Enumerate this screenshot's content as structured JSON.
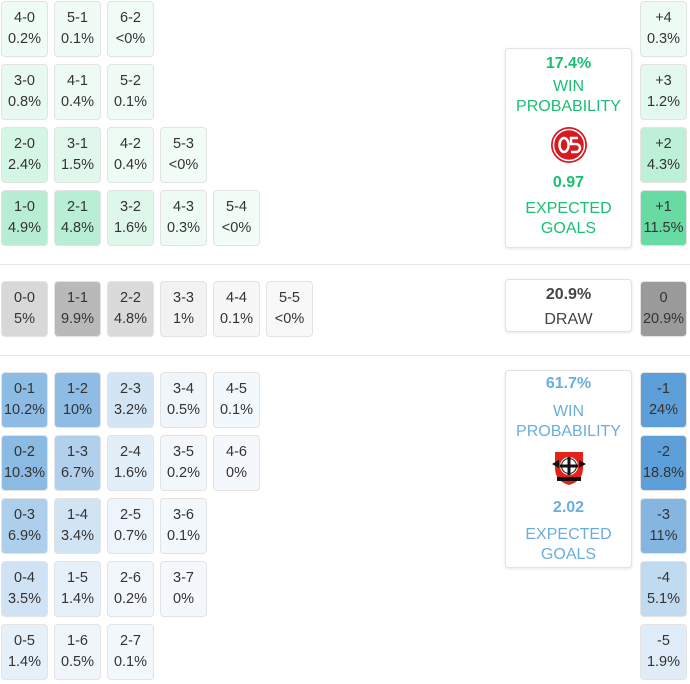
{
  "colors": {
    "home_accent": "#1bbf73",
    "away_accent": "#6aaedd",
    "draw_accent": "#444444"
  },
  "home_scores": [
    [
      {
        "score": "4-0",
        "pct": "0.2%"
      },
      {
        "score": "5-1",
        "pct": "0.1%"
      },
      {
        "score": "6-2",
        "pct": "<0%"
      }
    ],
    [
      {
        "score": "3-0",
        "pct": "0.8%"
      },
      {
        "score": "4-1",
        "pct": "0.4%"
      },
      {
        "score": "5-2",
        "pct": "0.1%"
      }
    ],
    [
      {
        "score": "2-0",
        "pct": "2.4%"
      },
      {
        "score": "3-1",
        "pct": "1.5%"
      },
      {
        "score": "4-2",
        "pct": "0.4%"
      },
      {
        "score": "5-3",
        "pct": "<0%"
      }
    ],
    [
      {
        "score": "1-0",
        "pct": "4.9%"
      },
      {
        "score": "2-1",
        "pct": "4.8%"
      },
      {
        "score": "3-2",
        "pct": "1.6%"
      },
      {
        "score": "4-3",
        "pct": "0.3%"
      },
      {
        "score": "5-4",
        "pct": "<0%"
      }
    ]
  ],
  "draw_scores": [
    {
      "score": "0-0",
      "pct": "5%"
    },
    {
      "score": "1-1",
      "pct": "9.9%"
    },
    {
      "score": "2-2",
      "pct": "4.8%"
    },
    {
      "score": "3-3",
      "pct": "1%"
    },
    {
      "score": "4-4",
      "pct": "0.1%"
    },
    {
      "score": "5-5",
      "pct": "<0%"
    }
  ],
  "away_scores": [
    [
      {
        "score": "0-1",
        "pct": "10.2%"
      },
      {
        "score": "1-2",
        "pct": "10%"
      },
      {
        "score": "2-3",
        "pct": "3.2%"
      },
      {
        "score": "3-4",
        "pct": "0.5%"
      },
      {
        "score": "4-5",
        "pct": "0.1%"
      }
    ],
    [
      {
        "score": "0-2",
        "pct": "10.3%"
      },
      {
        "score": "1-3",
        "pct": "6.7%"
      },
      {
        "score": "2-4",
        "pct": "1.6%"
      },
      {
        "score": "3-5",
        "pct": "0.2%"
      },
      {
        "score": "4-6",
        "pct": "0%"
      }
    ],
    [
      {
        "score": "0-3",
        "pct": "6.9%"
      },
      {
        "score": "1-4",
        "pct": "3.4%"
      },
      {
        "score": "2-5",
        "pct": "0.7%"
      },
      {
        "score": "3-6",
        "pct": "0.1%"
      }
    ],
    [
      {
        "score": "0-4",
        "pct": "3.5%"
      },
      {
        "score": "1-5",
        "pct": "1.4%"
      },
      {
        "score": "2-6",
        "pct": "0.2%"
      },
      {
        "score": "3-7",
        "pct": "0%"
      }
    ],
    [
      {
        "score": "0-5",
        "pct": "1.4%"
      },
      {
        "score": "1-6",
        "pct": "0.5%"
      },
      {
        "score": "2-7",
        "pct": "0.1%"
      }
    ]
  ],
  "margins": [
    {
      "label": "+4",
      "pct": "0.3%",
      "side": "home"
    },
    {
      "label": "+3",
      "pct": "1.2%",
      "side": "home"
    },
    {
      "label": "+2",
      "pct": "4.3%",
      "side": "home"
    },
    {
      "label": "+1",
      "pct": "11.5%",
      "side": "home"
    },
    {
      "label": "0",
      "pct": "20.9%",
      "side": "draw"
    },
    {
      "label": "-1",
      "pct": "24%",
      "side": "away"
    },
    {
      "label": "-2",
      "pct": "18.8%",
      "side": "away"
    },
    {
      "label": "-3",
      "pct": "11%",
      "side": "away"
    },
    {
      "label": "-4",
      "pct": "5.1%",
      "side": "away"
    },
    {
      "label": "-5",
      "pct": "1.9%",
      "side": "away"
    }
  ],
  "home_card": {
    "win_pct": "17.4%",
    "win_label_1": "WIN",
    "win_label_2": "PROBABILITY",
    "xg": "0.97",
    "xg_label_1": "EXPECTED",
    "xg_label_2": "GOALS",
    "logo_icon": "mainz-05-crest-icon"
  },
  "draw_card": {
    "pct": "20.9%",
    "label": "DRAW"
  },
  "away_card": {
    "win_pct": "61.7%",
    "win_label_1": "WIN",
    "win_label_2": "PROBABILITY",
    "xg": "2.02",
    "xg_label_1": "EXPECTED",
    "xg_label_2": "GOALS",
    "logo_icon": "bayer-leverkusen-crest-icon"
  }
}
